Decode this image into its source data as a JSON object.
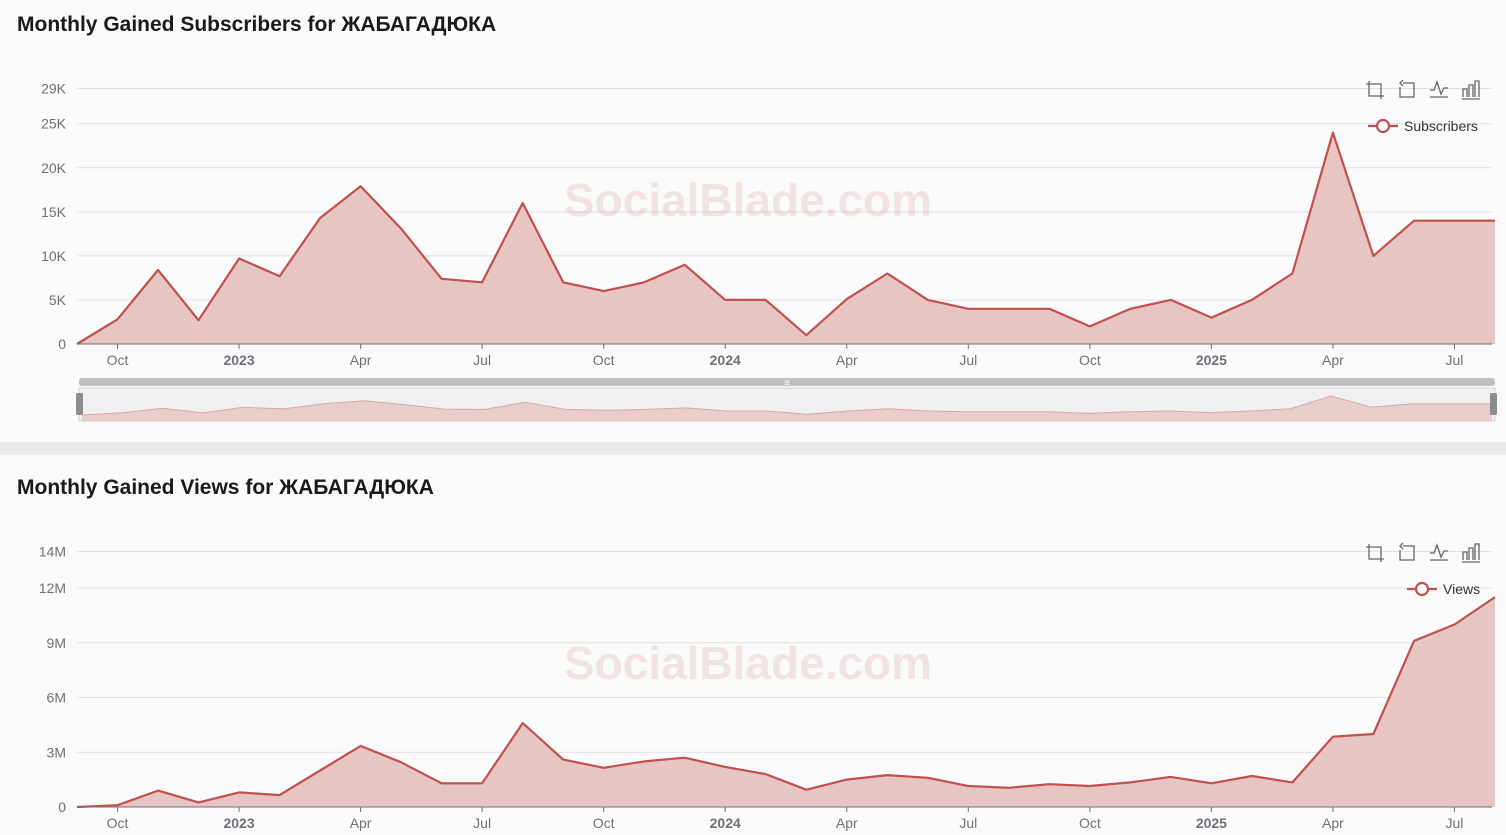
{
  "colors": {
    "line": "#c0504d",
    "area": "#e6c2bf",
    "grid": "#e0e0e6",
    "axis": "#6e7079",
    "slider_track": "#bfbfbf",
    "slider_handle": "#8c8c8c"
  },
  "watermark": "SocialBlade.com",
  "toolbox_icons": [
    "zoom-icon",
    "zoom-reset-icon",
    "line-chart-icon",
    "bar-chart-icon"
  ],
  "x_tick_labels": [
    {
      "label": "Oct",
      "bold": false
    },
    {
      "label": "2023",
      "bold": true
    },
    {
      "label": "Apr",
      "bold": false
    },
    {
      "label": "Jul",
      "bold": false
    },
    {
      "label": "Oct",
      "bold": false
    },
    {
      "label": "2024",
      "bold": true
    },
    {
      "label": "Apr",
      "bold": false
    },
    {
      "label": "Jul",
      "bold": false
    },
    {
      "label": "Oct",
      "bold": false
    },
    {
      "label": "2025",
      "bold": true
    },
    {
      "label": "Apr",
      "bold": false
    },
    {
      "label": "Jul",
      "bold": false
    }
  ],
  "charts": {
    "subscribers": {
      "title": "Monthly Gained Subscribers for ЖАБАГАДЮКА",
      "legend": "Subscribers",
      "y_tick_labels": [
        "0",
        "5K",
        "10K",
        "15K",
        "20K",
        "25K",
        "29K"
      ]
    },
    "views": {
      "title": "Monthly Gained Views for ЖАБАГАДЮКА",
      "legend": "Views",
      "y_tick_labels": [
        "0",
        "3M",
        "6M",
        "9M",
        "12M",
        "14M"
      ]
    }
  },
  "chart_data": [
    {
      "type": "area",
      "title": "Monthly Gained Subscribers for ЖАБАГАДЮКА",
      "series": [
        {
          "name": "Subscribers",
          "x": [
            "2022-09-01",
            "2022-10-01",
            "2022-11-01",
            "2022-12-01",
            "2023-01-01",
            "2023-02-01",
            "2023-03-01",
            "2023-04-01",
            "2023-05-01",
            "2023-06-01",
            "2023-07-01",
            "2023-08-01",
            "2023-09-01",
            "2023-10-01",
            "2023-11-01",
            "2023-12-01",
            "2024-01-01",
            "2024-02-01",
            "2024-03-01",
            "2024-04-01",
            "2024-05-01",
            "2024-06-01",
            "2024-07-01",
            "2024-08-01",
            "2024-09-01",
            "2024-10-01",
            "2024-11-01",
            "2024-12-01",
            "2025-01-01",
            "2025-02-01",
            "2025-03-01",
            "2025-04-01",
            "2025-05-01",
            "2025-06-01",
            "2025-07-01",
            "2025-08-01"
          ],
          "values": [
            0,
            2800,
            8400,
            2700,
            9700,
            7700,
            14300,
            17900,
            13100,
            7400,
            7000,
            16000,
            7000,
            6000,
            7000,
            9000,
            5000,
            5000,
            1000,
            5100,
            8000,
            5000,
            4000,
            4000,
            4000,
            2000,
            4000,
            5000,
            3000,
            5000,
            8000,
            24000,
            10000,
            14000,
            14000,
            14000
          ]
        }
      ],
      "y_ticks": [
        0,
        5000,
        10000,
        15000,
        20000,
        25000,
        29000
      ],
      "ylim": [
        0,
        29000
      ],
      "grid": true,
      "legend": "top-right",
      "data_zoom_slider": true
    },
    {
      "type": "area",
      "title": "Monthly Gained Views for ЖАБАГАДЮКА",
      "series": [
        {
          "name": "Views",
          "x": [
            "2022-09-01",
            "2022-10-01",
            "2022-11-01",
            "2022-12-01",
            "2023-01-01",
            "2023-02-01",
            "2023-03-01",
            "2023-04-01",
            "2023-05-01",
            "2023-06-01",
            "2023-07-01",
            "2023-08-01",
            "2023-09-01",
            "2023-10-01",
            "2023-11-01",
            "2023-12-01",
            "2024-01-01",
            "2024-02-01",
            "2024-03-01",
            "2024-04-01",
            "2024-05-01",
            "2024-06-01",
            "2024-07-01",
            "2024-08-01",
            "2024-09-01",
            "2024-10-01",
            "2024-11-01",
            "2024-12-01",
            "2025-01-01",
            "2025-02-01",
            "2025-03-01",
            "2025-04-01",
            "2025-05-01",
            "2025-06-01",
            "2025-07-01",
            "2025-08-01"
          ],
          "values": [
            0,
            100000,
            900000,
            250000,
            800000,
            650000,
            2000000,
            3350000,
            2450000,
            1300000,
            1300000,
            4600000,
            2600000,
            2150000,
            2500000,
            2700000,
            2200000,
            1800000,
            950000,
            1500000,
            1750000,
            1600000,
            1150000,
            1050000,
            1250000,
            1150000,
            1350000,
            1650000,
            1300000,
            1700000,
            1350000,
            3850000,
            4000000,
            9100000,
            10000000,
            11500000
          ]
        }
      ],
      "y_ticks": [
        0,
        3000000,
        6000000,
        9000000,
        12000000,
        14000000
      ],
      "ylim": [
        0,
        14000000
      ],
      "grid": true,
      "legend": "top-right"
    }
  ]
}
